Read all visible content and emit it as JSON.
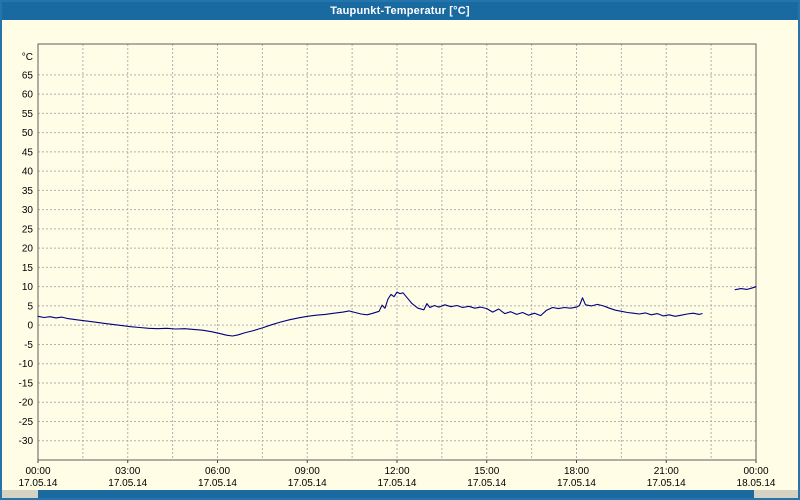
{
  "window": {
    "title": "Taupunkt-Temperatur [°C]"
  },
  "chart_data": {
    "type": "line",
    "title": "Taupunkt-Temperatur [°C]",
    "y_unit": "°C",
    "ylim": [
      -35,
      73
    ],
    "xlim": [
      0,
      24
    ],
    "grid": "dashed",
    "grid_color": "#b0b0b0",
    "x_grid_step": 1.5,
    "line_color": "#000080",
    "y_ticks": [
      65,
      60,
      55,
      50,
      45,
      40,
      35,
      30,
      25,
      20,
      15,
      10,
      5,
      0,
      -5,
      -10,
      -15,
      -20,
      -25,
      -30
    ],
    "x_ticks": [
      {
        "hour": 0,
        "time": "00:00",
        "date": "17.05.14"
      },
      {
        "hour": 3,
        "time": "03:00",
        "date": "17.05.14"
      },
      {
        "hour": 6,
        "time": "06:00",
        "date": "17.05.14"
      },
      {
        "hour": 9,
        "time": "09:00",
        "date": "17.05.14"
      },
      {
        "hour": 12,
        "time": "12:00",
        "date": "17.05.14"
      },
      {
        "hour": 15,
        "time": "15:00",
        "date": "17.05.14"
      },
      {
        "hour": 18,
        "time": "18:00",
        "date": "17.05.14"
      },
      {
        "hour": 21,
        "time": "21:00",
        "date": "17.05.14"
      },
      {
        "hour": 24,
        "time": "00:00",
        "date": "18.05.14"
      }
    ],
    "series": [
      {
        "name": "Taupunkt-Temperatur",
        "segments": [
          [
            [
              0,
              2.3
            ],
            [
              0.2,
              2.0
            ],
            [
              0.4,
              2.2
            ],
            [
              0.6,
              1.9
            ],
            [
              0.8,
              2.1
            ],
            [
              1.0,
              1.7
            ],
            [
              1.3,
              1.4
            ],
            [
              1.6,
              1.1
            ],
            [
              1.9,
              0.8
            ],
            [
              2.2,
              0.5
            ],
            [
              2.5,
              0.2
            ],
            [
              2.8,
              -0.1
            ],
            [
              3.1,
              -0.4
            ],
            [
              3.4,
              -0.6
            ],
            [
              3.7,
              -0.8
            ],
            [
              4.0,
              -0.9
            ],
            [
              4.3,
              -0.8
            ],
            [
              4.6,
              -1.0
            ],
            [
              4.9,
              -0.9
            ],
            [
              5.2,
              -1.1
            ],
            [
              5.5,
              -1.3
            ],
            [
              5.8,
              -1.7
            ],
            [
              6.1,
              -2.2
            ],
            [
              6.3,
              -2.6
            ],
            [
              6.5,
              -2.8
            ],
            [
              6.7,
              -2.5
            ],
            [
              6.9,
              -2.0
            ],
            [
              7.2,
              -1.4
            ],
            [
              7.5,
              -0.7
            ],
            [
              7.8,
              0.1
            ],
            [
              8.1,
              0.8
            ],
            [
              8.4,
              1.4
            ],
            [
              8.7,
              1.9
            ],
            [
              9.0,
              2.3
            ],
            [
              9.3,
              2.6
            ],
            [
              9.6,
              2.8
            ],
            [
              9.9,
              3.1
            ],
            [
              10.2,
              3.4
            ],
            [
              10.4,
              3.7
            ],
            [
              10.6,
              3.3
            ],
            [
              10.8,
              2.9
            ],
            [
              11.0,
              2.7
            ],
            [
              11.2,
              3.1
            ],
            [
              11.4,
              3.6
            ],
            [
              11.5,
              5.2
            ],
            [
              11.6,
              4.4
            ],
            [
              11.7,
              6.8
            ],
            [
              11.8,
              8.0
            ],
            [
              11.9,
              7.4
            ],
            [
              12.0,
              8.6
            ],
            [
              12.1,
              8.2
            ],
            [
              12.2,
              8.4
            ],
            [
              12.35,
              7.0
            ],
            [
              12.5,
              5.6
            ],
            [
              12.7,
              4.4
            ],
            [
              12.9,
              4.0
            ],
            [
              13.0,
              5.6
            ],
            [
              13.1,
              4.6
            ],
            [
              13.25,
              5.1
            ],
            [
              13.4,
              4.7
            ],
            [
              13.6,
              5.3
            ],
            [
              13.8,
              4.8
            ],
            [
              14.0,
              5.1
            ],
            [
              14.2,
              4.6
            ],
            [
              14.4,
              4.9
            ],
            [
              14.6,
              4.4
            ],
            [
              14.8,
              4.7
            ],
            [
              15.0,
              4.3
            ],
            [
              15.2,
              3.4
            ],
            [
              15.4,
              4.2
            ],
            [
              15.6,
              3.0
            ],
            [
              15.8,
              3.5
            ],
            [
              16.0,
              2.8
            ],
            [
              16.2,
              3.3
            ],
            [
              16.4,
              2.6
            ],
            [
              16.6,
              3.1
            ],
            [
              16.8,
              2.5
            ],
            [
              17.0,
              3.9
            ],
            [
              17.2,
              4.6
            ],
            [
              17.4,
              4.3
            ],
            [
              17.6,
              4.6
            ],
            [
              17.8,
              4.4
            ],
            [
              18.0,
              4.7
            ],
            [
              18.1,
              5.1
            ],
            [
              18.2,
              7.1
            ],
            [
              18.3,
              5.3
            ],
            [
              18.5,
              5.0
            ],
            [
              18.7,
              5.4
            ],
            [
              18.9,
              5.0
            ],
            [
              19.1,
              4.4
            ],
            [
              19.3,
              3.9
            ],
            [
              19.5,
              3.6
            ],
            [
              19.7,
              3.3
            ],
            [
              19.9,
              3.1
            ],
            [
              20.1,
              2.9
            ],
            [
              20.3,
              3.2
            ],
            [
              20.5,
              2.7
            ],
            [
              20.7,
              3.0
            ],
            [
              20.9,
              2.4
            ],
            [
              21.1,
              2.7
            ],
            [
              21.3,
              2.3
            ],
            [
              21.5,
              2.6
            ],
            [
              21.7,
              2.9
            ],
            [
              21.9,
              3.1
            ],
            [
              22.1,
              2.8
            ],
            [
              22.2,
              3.0
            ]
          ],
          [
            [
              23.3,
              9.2
            ],
            [
              23.5,
              9.5
            ],
            [
              23.7,
              9.3
            ],
            [
              23.85,
              9.6
            ],
            [
              24.0,
              10.0
            ]
          ]
        ]
      }
    ]
  }
}
